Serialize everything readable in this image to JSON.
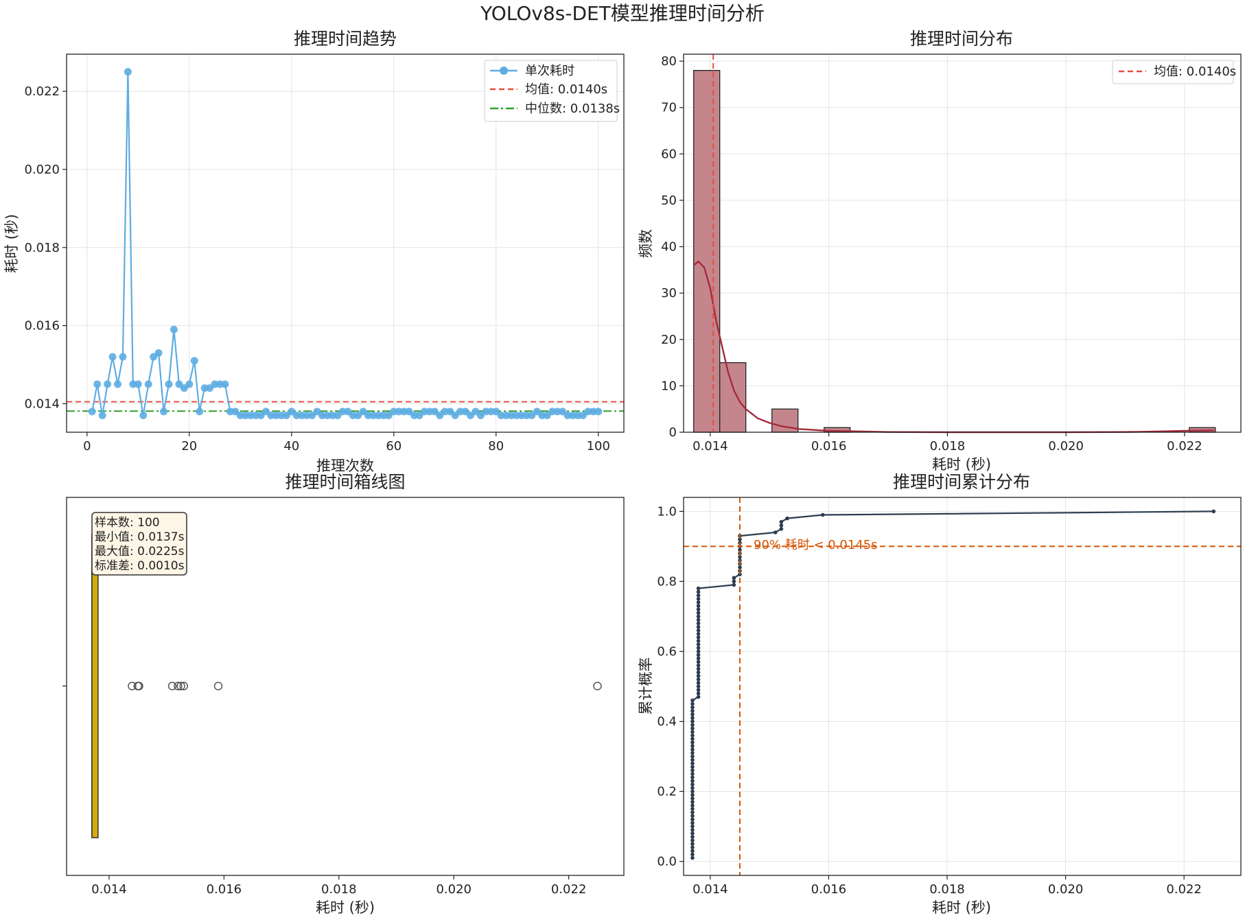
{
  "figure_title": "YOLOv8s-DET模型推理时间分析",
  "colors": {
    "trend_line": "#5dade2",
    "mean_line": "#e74c3c",
    "median_line": "#2ca02c",
    "hist_bar": "#c4868c",
    "hist_edge": "#222222",
    "kde_line": "#a52a3a",
    "box_fill": "#d4ac0d",
    "cdf_line": "#2c3e50",
    "p90_line": "#d35400"
  },
  "chart_data": [
    {
      "type": "line",
      "title": "推理时间趋势",
      "xlabel": "推理次数",
      "ylabel": "耗时 (秒)",
      "xlim": [
        -4,
        105
      ],
      "ylim": [
        0.01327,
        0.02295
      ],
      "xticks": [
        0,
        20,
        40,
        60,
        80,
        100
      ],
      "yticks": [
        0.014,
        0.016,
        0.018,
        0.02,
        0.022
      ],
      "grid": true,
      "legend_position": "top-right",
      "x": [
        1,
        2,
        3,
        4,
        5,
        6,
        7,
        8,
        9,
        10,
        11,
        12,
        13,
        14,
        15,
        16,
        17,
        18,
        19,
        20,
        21,
        22,
        23,
        24,
        25,
        26,
        27,
        28,
        29,
        30,
        31,
        32,
        33,
        34,
        35,
        36,
        37,
        38,
        39,
        40,
        41,
        42,
        43,
        44,
        45,
        46,
        47,
        48,
        49,
        50,
        51,
        52,
        53,
        54,
        55,
        56,
        57,
        58,
        59,
        60,
        61,
        62,
        63,
        64,
        65,
        66,
        67,
        68,
        69,
        70,
        71,
        72,
        73,
        74,
        75,
        76,
        77,
        78,
        79,
        80,
        81,
        82,
        83,
        84,
        85,
        86,
        87,
        88,
        89,
        90,
        91,
        92,
        93,
        94,
        95,
        96,
        97,
        98,
        99,
        100
      ],
      "series": [
        {
          "name": "单次耗时",
          "values": [
            0.0138,
            0.0145,
            0.0137,
            0.0145,
            0.0152,
            0.0145,
            0.0152,
            0.0225,
            0.0145,
            0.0145,
            0.0137,
            0.0145,
            0.0152,
            0.0153,
            0.0138,
            0.0145,
            0.0159,
            0.0145,
            0.0144,
            0.0145,
            0.0151,
            0.0138,
            0.0144,
            0.0144,
            0.0145,
            0.0145,
            0.0145,
            0.0138,
            0.0138,
            0.0137,
            0.0137,
            0.0137,
            0.0137,
            0.0137,
            0.0138,
            0.0137,
            0.0137,
            0.0137,
            0.0137,
            0.0138,
            0.0137,
            0.0137,
            0.0137,
            0.0137,
            0.0138,
            0.0137,
            0.0137,
            0.0137,
            0.0137,
            0.0138,
            0.0138,
            0.0137,
            0.0137,
            0.0138,
            0.0137,
            0.0137,
            0.0137,
            0.0137,
            0.0137,
            0.0138,
            0.0138,
            0.0138,
            0.0138,
            0.0137,
            0.0137,
            0.0138,
            0.0138,
            0.0138,
            0.0137,
            0.0138,
            0.0138,
            0.0137,
            0.0138,
            0.0138,
            0.0137,
            0.0138,
            0.0137,
            0.0138,
            0.0138,
            0.0138,
            0.0137,
            0.0137,
            0.0137,
            0.0137,
            0.0137,
            0.0137,
            0.0137,
            0.0138,
            0.0137,
            0.0137,
            0.0138,
            0.0138,
            0.0138,
            0.0137,
            0.0137,
            0.0137,
            0.0137,
            0.0138,
            0.0138,
            0.0138
          ]
        }
      ],
      "mean": 0.01405,
      "median": 0.01381,
      "legend": [
        "单次耗时",
        "均值: 0.0140s",
        "中位数: 0.0138s"
      ]
    },
    {
      "type": "bar",
      "title": "推理时间分布",
      "xlabel": "耗时 (秒)",
      "ylabel": "频数",
      "xlim": [
        0.01355,
        0.02295
      ],
      "ylim": [
        0,
        81.5
      ],
      "xticks": [
        0.014,
        0.016,
        0.018,
        0.02,
        0.022
      ],
      "yticks": [
        0,
        10,
        20,
        30,
        40,
        50,
        60,
        70,
        80
      ],
      "grid": true,
      "legend_position": "top-right",
      "bins": [
        [
          0.01372,
          0.01416
        ],
        [
          0.01416,
          0.0146
        ],
        [
          0.0146,
          0.01504
        ],
        [
          0.01504,
          0.01548
        ],
        [
          0.01548,
          0.01592
        ],
        [
          0.01592,
          0.01636
        ],
        [
          0.01636,
          0.0168
        ],
        [
          0.0168,
          0.01724
        ],
        [
          0.01724,
          0.01768
        ],
        [
          0.01768,
          0.01812
        ],
        [
          0.01812,
          0.01856
        ],
        [
          0.01856,
          0.019
        ],
        [
          0.019,
          0.01944
        ],
        [
          0.01944,
          0.01988
        ],
        [
          0.01988,
          0.02032
        ],
        [
          0.02032,
          0.02076
        ],
        [
          0.02076,
          0.0212
        ],
        [
          0.0212,
          0.02164
        ],
        [
          0.02164,
          0.02208
        ],
        [
          0.02208,
          0.02252
        ]
      ],
      "counts": [
        78,
        15,
        0,
        5,
        0,
        1,
        0,
        0,
        0,
        0,
        0,
        0,
        0,
        0,
        0,
        0,
        0,
        0,
        0,
        1
      ],
      "kde": {
        "x": [
          0.01372,
          0.0138,
          0.0139,
          0.014,
          0.0141,
          0.0142,
          0.0143,
          0.0144,
          0.0145,
          0.0146,
          0.0148,
          0.015,
          0.0152,
          0.0155,
          0.016,
          0.017,
          0.018,
          0.019,
          0.02,
          0.021,
          0.0215,
          0.022,
          0.0225
        ],
        "y": [
          36,
          36.8,
          35.5,
          31,
          24,
          18.5,
          13,
          9,
          6.5,
          5,
          3,
          2,
          1.3,
          0.7,
          0.3,
          0.05,
          0,
          0,
          0,
          0.05,
          0.15,
          0.3,
          0.4
        ]
      },
      "mean": 0.01405,
      "legend": [
        "均值: 0.0140s"
      ]
    },
    {
      "type": "scatter",
      "subtype": "boxplot",
      "title": "推理时间箱线图",
      "xlabel": "耗时 (秒)",
      "xlim": [
        0.01326,
        0.02296
      ],
      "xticks": [
        0.014,
        0.016,
        0.018,
        0.02,
        0.022
      ],
      "grid": false,
      "box": {
        "whisker_low": 0.0137,
        "q1": 0.0137,
        "median": 0.0137,
        "q3": 0.0138,
        "whisker_high": 0.0138
      },
      "outliers": [
        0.0144,
        0.0145,
        0.01452,
        0.0151,
        0.0152,
        0.01525,
        0.0153,
        0.0159,
        0.0225
      ],
      "stats": [
        "样本数: 100",
        "最小值: 0.0137s",
        "最大值: 0.0225s",
        "标准差: 0.0010s"
      ]
    },
    {
      "type": "line",
      "title": "推理时间累计分布",
      "xlabel": "耗时 (秒)",
      "ylabel": "累计概率",
      "xlim": [
        0.01355,
        0.02296
      ],
      "ylim": [
        -0.04,
        1.04
      ],
      "xticks": [
        0.014,
        0.016,
        0.018,
        0.02,
        0.022
      ],
      "yticks": [
        0.0,
        0.2,
        0.4,
        0.6,
        0.8,
        1.0
      ],
      "grid": true,
      "cdf_steps": [
        {
          "x": 0.0137,
          "y0": 0.01,
          "y1": 0.46
        },
        {
          "x": 0.0138,
          "y0": 0.47,
          "y1": 0.78
        },
        {
          "x": 0.0144,
          "y0": 0.79,
          "y1": 0.81
        },
        {
          "x": 0.0145,
          "y0": 0.82,
          "y1": 0.93
        },
        {
          "x": 0.0151,
          "y0": 0.94,
          "y1": 0.94
        },
        {
          "x": 0.0152,
          "y0": 0.95,
          "y1": 0.97
        },
        {
          "x": 0.0153,
          "y0": 0.98,
          "y1": 0.98
        },
        {
          "x": 0.0159,
          "y0": 0.99,
          "y1": 0.99
        },
        {
          "x": 0.0225,
          "y0": 1.0,
          "y1": 1.0
        }
      ],
      "p90_x": 0.0145,
      "p90_y": 0.9,
      "annotation": "90% 耗时 < 0.0145s"
    }
  ]
}
